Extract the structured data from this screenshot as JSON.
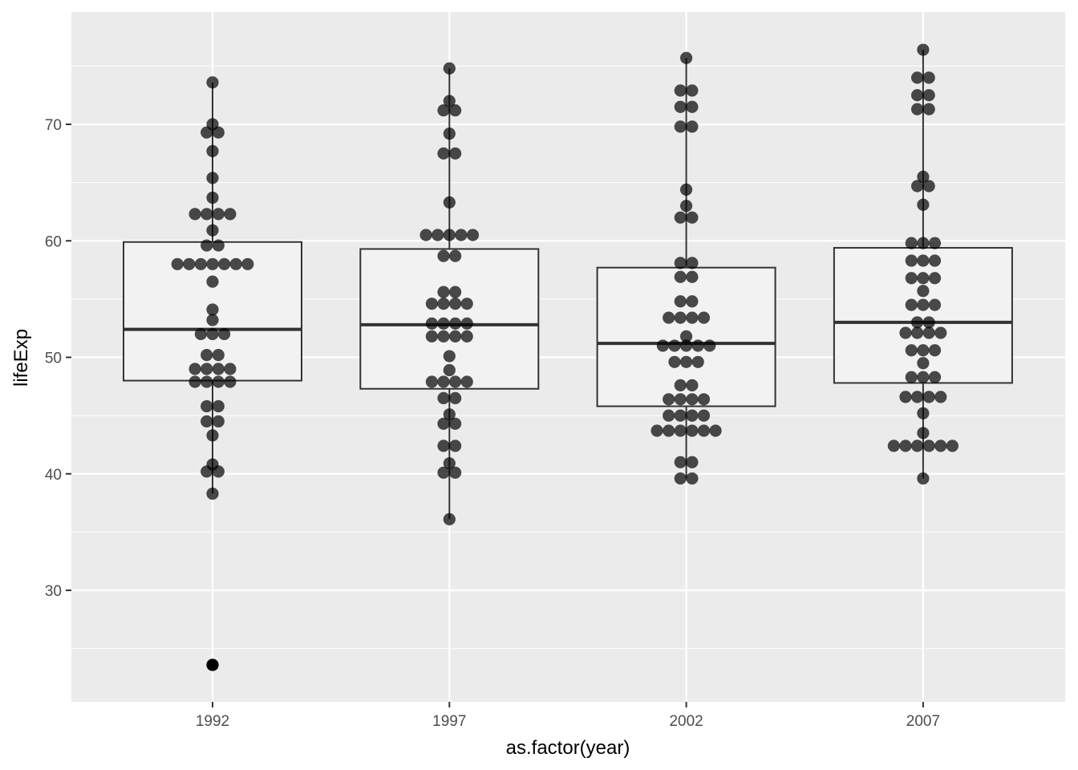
{
  "chart_data": {
    "type": "boxplot",
    "xlabel": "as.factor(year)",
    "ylabel": "lifeExp",
    "categories": [
      "1992",
      "1997",
      "2002",
      "2007"
    ],
    "ylim": [
      20.5,
      79.5
    ],
    "yticks": [
      30,
      40,
      50,
      60,
      70
    ],
    "grid": true,
    "boxes": [
      {
        "category": "1992",
        "q1": 48.0,
        "median": 52.4,
        "q3": 59.9,
        "whisker_low": 38.3,
        "whisker_high": 73.6
      },
      {
        "category": "1997",
        "q1": 47.3,
        "median": 52.8,
        "q3": 59.3,
        "whisker_low": 36.1,
        "whisker_high": 74.8
      },
      {
        "category": "2002",
        "q1": 45.8,
        "median": 51.2,
        "q3": 57.7,
        "whisker_low": 39.6,
        "whisker_high": 75.7
      },
      {
        "category": "2007",
        "q1": 47.8,
        "median": 53.0,
        "q3": 59.4,
        "whisker_low": 39.6,
        "whisker_high": 76.4
      }
    ],
    "outliers": [
      {
        "category": "1992",
        "value": 23.6
      }
    ],
    "dotplot": [
      {
        "category": "1992",
        "rows": [
          {
            "y": 73.6,
            "n": 1
          },
          {
            "y": 70.0,
            "n": 1
          },
          {
            "y": 69.3,
            "n": 2
          },
          {
            "y": 67.7,
            "n": 1
          },
          {
            "y": 65.4,
            "n": 1
          },
          {
            "y": 63.7,
            "n": 1
          },
          {
            "y": 62.3,
            "n": 4
          },
          {
            "y": 60.9,
            "n": 1
          },
          {
            "y": 59.6,
            "n": 2
          },
          {
            "y": 58.0,
            "n": 7
          },
          {
            "y": 56.5,
            "n": 1
          },
          {
            "y": 54.1,
            "n": 1
          },
          {
            "y": 53.2,
            "n": 1
          },
          {
            "y": 52.0,
            "n": 3
          },
          {
            "y": 50.2,
            "n": 2
          },
          {
            "y": 49.0,
            "n": 4
          },
          {
            "y": 47.9,
            "n": 4
          },
          {
            "y": 45.8,
            "n": 2
          },
          {
            "y": 44.5,
            "n": 2
          },
          {
            "y": 43.3,
            "n": 1
          },
          {
            "y": 40.8,
            "n": 1
          },
          {
            "y": 40.2,
            "n": 2
          },
          {
            "y": 38.3,
            "n": 1
          },
          {
            "y": 23.6,
            "n": 1
          }
        ]
      },
      {
        "category": "1997",
        "rows": [
          {
            "y": 74.8,
            "n": 1
          },
          {
            "y": 72.0,
            "n": 1
          },
          {
            "y": 71.2,
            "n": 2
          },
          {
            "y": 69.2,
            "n": 1
          },
          {
            "y": 67.5,
            "n": 2
          },
          {
            "y": 63.3,
            "n": 1
          },
          {
            "y": 60.5,
            "n": 5
          },
          {
            "y": 58.7,
            "n": 2
          },
          {
            "y": 55.6,
            "n": 2
          },
          {
            "y": 54.6,
            "n": 4
          },
          {
            "y": 52.9,
            "n": 4
          },
          {
            "y": 51.8,
            "n": 4
          },
          {
            "y": 50.1,
            "n": 1
          },
          {
            "y": 48.9,
            "n": 1
          },
          {
            "y": 47.9,
            "n": 4
          },
          {
            "y": 46.5,
            "n": 2
          },
          {
            "y": 45.1,
            "n": 1
          },
          {
            "y": 44.3,
            "n": 2
          },
          {
            "y": 42.4,
            "n": 2
          },
          {
            "y": 40.9,
            "n": 1
          },
          {
            "y": 40.1,
            "n": 2
          },
          {
            "y": 36.1,
            "n": 1
          }
        ]
      },
      {
        "category": "2002",
        "rows": [
          {
            "y": 75.7,
            "n": 1
          },
          {
            "y": 72.9,
            "n": 2
          },
          {
            "y": 71.5,
            "n": 2
          },
          {
            "y": 69.8,
            "n": 2
          },
          {
            "y": 64.4,
            "n": 1
          },
          {
            "y": 63.0,
            "n": 1
          },
          {
            "y": 62.0,
            "n": 2
          },
          {
            "y": 58.1,
            "n": 2
          },
          {
            "y": 56.9,
            "n": 2
          },
          {
            "y": 54.8,
            "n": 2
          },
          {
            "y": 53.4,
            "n": 4
          },
          {
            "y": 51.8,
            "n": 1
          },
          {
            "y": 51.0,
            "n": 5
          },
          {
            "y": 49.6,
            "n": 3
          },
          {
            "y": 47.6,
            "n": 2
          },
          {
            "y": 46.4,
            "n": 4
          },
          {
            "y": 45.0,
            "n": 4
          },
          {
            "y": 43.7,
            "n": 6
          },
          {
            "y": 41.0,
            "n": 2
          },
          {
            "y": 39.6,
            "n": 2
          }
        ]
      },
      {
        "category": "2007",
        "rows": [
          {
            "y": 76.4,
            "n": 1
          },
          {
            "y": 74.0,
            "n": 2
          },
          {
            "y": 72.5,
            "n": 2
          },
          {
            "y": 71.3,
            "n": 2
          },
          {
            "y": 65.5,
            "n": 1
          },
          {
            "y": 64.7,
            "n": 2
          },
          {
            "y": 63.1,
            "n": 1
          },
          {
            "y": 59.8,
            "n": 3
          },
          {
            "y": 58.3,
            "n": 3
          },
          {
            "y": 56.8,
            "n": 3
          },
          {
            "y": 55.7,
            "n": 1
          },
          {
            "y": 54.5,
            "n": 3
          },
          {
            "y": 53.0,
            "n": 2
          },
          {
            "y": 52.1,
            "n": 4
          },
          {
            "y": 50.6,
            "n": 3
          },
          {
            "y": 49.5,
            "n": 1
          },
          {
            "y": 48.3,
            "n": 3
          },
          {
            "y": 46.6,
            "n": 4
          },
          {
            "y": 45.2,
            "n": 1
          },
          {
            "y": 43.5,
            "n": 1
          },
          {
            "y": 42.4,
            "n": 6
          },
          {
            "y": 39.6,
            "n": 1
          }
        ]
      }
    ],
    "colors": {
      "panel_background": "#ebebeb",
      "grid_major": "#ffffff",
      "box_fill": "#f2f2f2",
      "box_outline": "#333333",
      "point": "#000000",
      "point_alpha": 0.7
    }
  }
}
